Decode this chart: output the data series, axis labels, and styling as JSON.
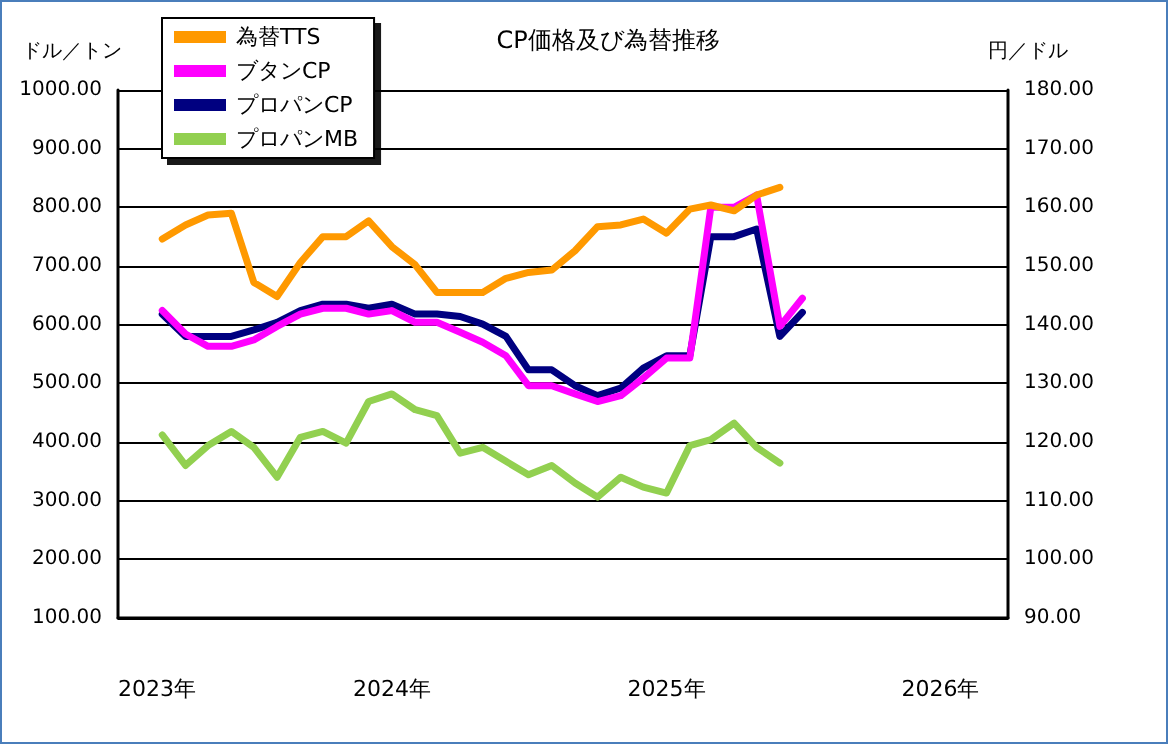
{
  "chart_data": {
    "type": "line",
    "title": "CP価格及び為替推移",
    "ylabel": "ドル／トン",
    "y2label": "円／ドル",
    "x": [
      "2023-03",
      "2023-04",
      "2023-05",
      "2023-06",
      "2023-07",
      "2023-08",
      "2023-09",
      "2023-10",
      "2023-11",
      "2023-12",
      "2024-01",
      "2024-02",
      "2024-03",
      "2024-04",
      "2024-05",
      "2024-06",
      "2024-07",
      "2024-08",
      "2024-09",
      "2024-10",
      "2024-11",
      "2024-12",
      "2025-01",
      "2025-02",
      "2025-03",
      "2025-04",
      "2025-05",
      "2025-06",
      "2025-07"
    ],
    "series": [
      {
        "name": "為替TTS",
        "color": "#ff9900",
        "axis": "y2",
        "values": [
          154.6,
          157.0,
          158.7,
          159.0,
          147.2,
          144.8,
          150.6,
          155.0,
          155.0,
          157.7,
          153.3,
          150.2,
          145.5,
          145.5,
          145.5,
          147.9,
          148.9,
          149.3,
          152.6,
          156.7,
          157.0,
          158.0,
          155.6,
          159.7,
          160.4,
          159.4,
          162.1,
          163.4,
          null
        ]
      },
      {
        "name": "ブタンCP",
        "color": "#ff00ff",
        "values": [
          624,
          584,
          563,
          563,
          574,
          597,
          618,
          628,
          628,
          618,
          624,
          604,
          604,
          587,
          570,
          547,
          496,
          496,
          482,
          469,
          479,
          509,
          543,
          543,
          800,
          800,
          821,
          597,
          645
        ]
      },
      {
        "name": "プロパンCP",
        "color": "#000080",
        "values": [
          618,
          580,
          580,
          580,
          591,
          604,
          624,
          635,
          635,
          628,
          635,
          618,
          618,
          614,
          601,
          580,
          523,
          523,
          496,
          479,
          492,
          526,
          547,
          547,
          750,
          750,
          763,
          580,
          621
        ]
      },
      {
        "name": "プロパンMB",
        "color": "#92d050",
        "values": [
          412,
          360,
          394,
          418,
          391,
          340,
          408,
          418,
          398,
          469,
          482,
          455,
          445,
          381,
          391,
          367,
          344,
          360,
          330,
          306,
          340,
          323,
          313,
          394,
          404,
          432,
          391,
          364,
          null
        ]
      }
    ],
    "xlim": [
      "2023-01",
      "2026-04"
    ],
    "xticks": [
      {
        "value": "2023-01",
        "label": "2023年"
      },
      {
        "value": "2024-01",
        "label": "2024年"
      },
      {
        "value": "2025-01",
        "label": "2025年"
      },
      {
        "value": "2026-01",
        "label": "2026年"
      }
    ],
    "ylim": [
      100,
      1000
    ],
    "yticks": [
      {
        "value": 100,
        "label": "100.00"
      },
      {
        "value": 200,
        "label": "200.00"
      },
      {
        "value": 300,
        "label": "300.00"
      },
      {
        "value": 400,
        "label": "400.00"
      },
      {
        "value": 500,
        "label": "500.00"
      },
      {
        "value": 600,
        "label": "600.00"
      },
      {
        "value": 700,
        "label": "700.00"
      },
      {
        "value": 800,
        "label": "800.00"
      },
      {
        "value": 900,
        "label": "900.00"
      },
      {
        "value": 1000,
        "label": "1000.00"
      }
    ],
    "y2lim": [
      90,
      180
    ],
    "y2ticks": [
      {
        "value": 90,
        "label": "90.00"
      },
      {
        "value": 100,
        "label": "100.00"
      },
      {
        "value": 110,
        "label": "110.00"
      },
      {
        "value": 120,
        "label": "120.00"
      },
      {
        "value": 130,
        "label": "130.00"
      },
      {
        "value": 140,
        "label": "140.00"
      },
      {
        "value": 150,
        "label": "150.00"
      },
      {
        "value": 160,
        "label": "160.00"
      },
      {
        "value": 170,
        "label": "170.00"
      },
      {
        "value": 180,
        "label": "180.00"
      }
    ],
    "grid": "y",
    "legend": "top left",
    "marker": "none",
    "line_style": "solid"
  }
}
